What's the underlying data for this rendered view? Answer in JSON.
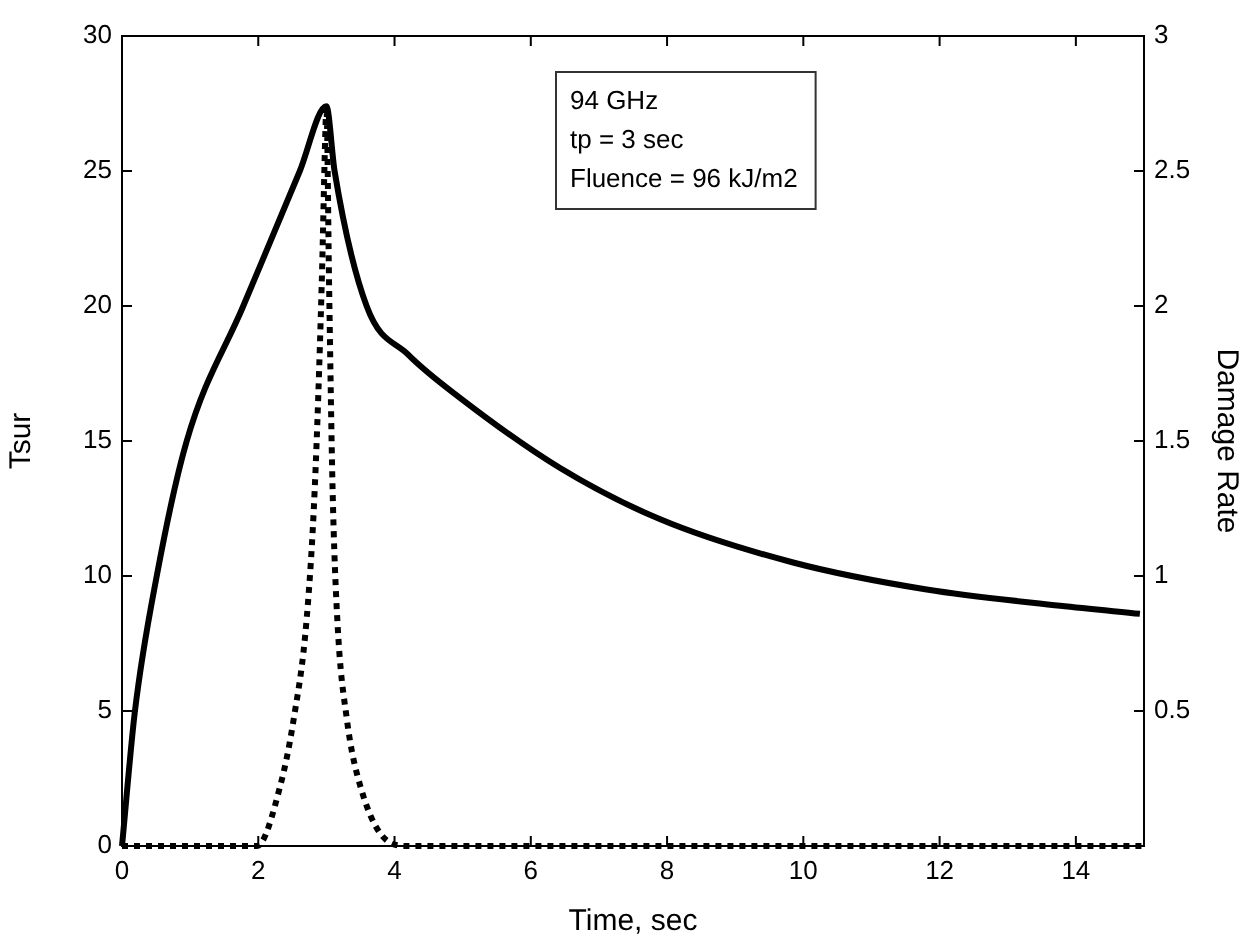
{
  "chart_data": {
    "type": "line",
    "xlabel": "Time, sec",
    "ylabel": "Tsur",
    "y2label": "Damage Rate",
    "annotations": [
      "94 GHz",
      "tp = 3 sec",
      "Fluence = 96 kJ/m2"
    ],
    "xlim": [
      0,
      15
    ],
    "xticks": [
      0,
      2,
      4,
      6,
      8,
      10,
      12,
      14
    ],
    "ylim": [
      0,
      30
    ],
    "yticks": [
      0,
      5,
      10,
      15,
      20,
      25,
      30
    ],
    "y2lim": [
      0,
      3
    ],
    "y2ticks": [
      0.5,
      1,
      1.5,
      2,
      2.5,
      3
    ],
    "grid": false,
    "legend": false,
    "marker": "none",
    "series": [
      {
        "color": "#000000",
        "line_style": "solid",
        "x": [
          0,
          0.19,
          0.51,
          0.95,
          1.78,
          2.61,
          3,
          3.12,
          3.59,
          4.2,
          4.96,
          6.43,
          7.9,
          9.85,
          11.81,
          13.77,
          14.94
        ],
        "values": [
          0,
          5,
          10,
          15,
          20,
          25,
          27.4,
          25,
          20,
          18.2,
          16.6,
          14,
          12.1,
          10.5,
          9.5,
          8.9,
          8.6
        ]
      },
      {
        "color": "#000000",
        "line_style": "dotted",
        "axis": "y2",
        "x": [
          0,
          1.98,
          2.32,
          2.52,
          2.71,
          2.83,
          2.93,
          2.99,
          3,
          3.04,
          3.09,
          3.16,
          3.3,
          3.5,
          3.89,
          4.2,
          15
        ],
        "values": [
          0,
          0,
          0.22,
          0.47,
          0.84,
          1.33,
          2.07,
          2.69,
          2.74,
          2.07,
          1.33,
          0.84,
          0.47,
          0.22,
          0.02,
          0,
          0
        ]
      }
    ]
  }
}
